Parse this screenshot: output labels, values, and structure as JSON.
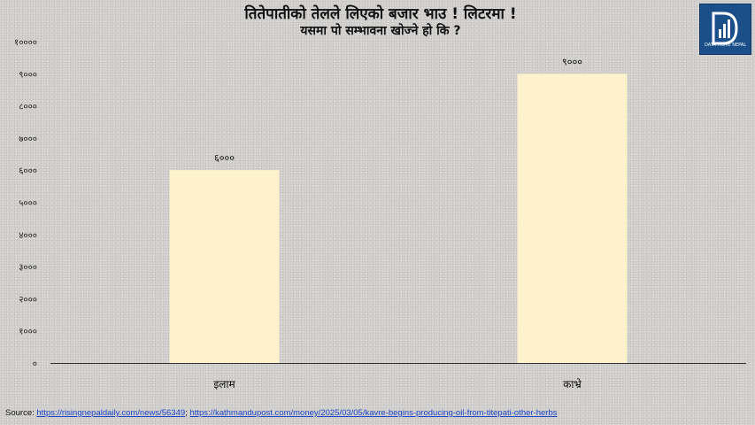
{
  "chart_data": {
    "type": "bar",
    "title": "तितेपातीको तेलले लिएको बजार भाउ ! लिटरमा !",
    "subtitle": "यसमा पो सम्भावना खोज्ने हो कि ?",
    "categories": [
      "इलाम",
      "काभ्रे"
    ],
    "values": [
      6000,
      9000
    ],
    "data_labels": [
      "६०००",
      "९०००"
    ],
    "ylim": [
      0,
      10000
    ],
    "yticks": [
      0,
      1000,
      2000,
      3000,
      4000,
      5000,
      6000,
      7000,
      8000,
      9000,
      10000
    ],
    "ytick_labels": [
      "०",
      "१०००",
      "२०००",
      "३०००",
      "४०००",
      "५०००",
      "६०००",
      "७०००",
      "८०००",
      "९०००",
      "१००००"
    ],
    "bar_color": "#fef2cc",
    "axis_color": "#333333",
    "grid": false,
    "legend": "none"
  },
  "logo": {
    "text": "DATA HOME NEPAL",
    "bg_color": "#1b4f8a"
  },
  "source": {
    "label": "Source:",
    "link1": "https://risingnepaldaily.com/news/56349",
    "separator": ";",
    "link2": "https://kathmandupost.com/money/2025/03/05/kavre-begins-producing-oil-from-titepati-other-herbs"
  }
}
